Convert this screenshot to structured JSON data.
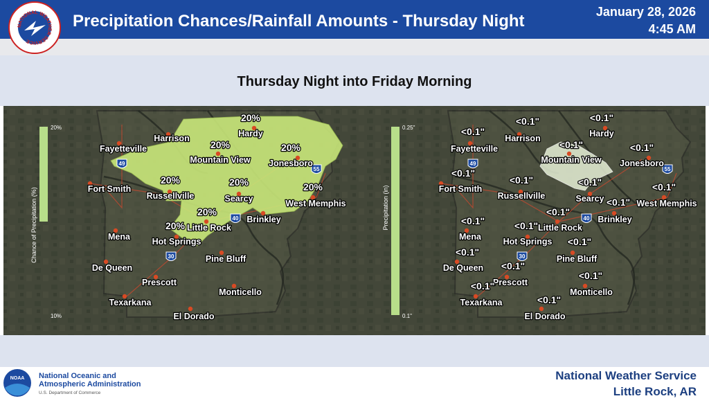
{
  "header": {
    "logo_text": "NATIONAL WEATHER SERVICE",
    "title": "Precipitation Chances/Rainfall Amounts - Thursday Night",
    "date": "January 28, 2026",
    "time": "4:45 AM"
  },
  "subtitle": "Thursday Night into Friday Morning",
  "maps": [
    {
      "legend_title": "Chance of Precipitation (%)",
      "legend_max": "20%",
      "legend_min": "10%",
      "interstates": [
        "49",
        "55",
        "40",
        "30"
      ],
      "cities": [
        {
          "name": "Fayetteville",
          "value": null
        },
        {
          "name": "Harrison",
          "value": null
        },
        {
          "name": "Hardy",
          "value": "20%"
        },
        {
          "name": "Mountain View",
          "value": "20%"
        },
        {
          "name": "Jonesboro",
          "value": "20%"
        },
        {
          "name": "Fort Smith",
          "value": null
        },
        {
          "name": "Russellville",
          "value": "20%"
        },
        {
          "name": "Searcy",
          "value": "20%"
        },
        {
          "name": "West Memphis",
          "value": "20%"
        },
        {
          "name": "Brinkley",
          "value": null
        },
        {
          "name": "Little Rock",
          "value": "20%"
        },
        {
          "name": "Mena",
          "value": null
        },
        {
          "name": "Hot Springs",
          "value": "20%"
        },
        {
          "name": "Pine Bluff",
          "value": null
        },
        {
          "name": "De Queen",
          "value": null
        },
        {
          "name": "Prescott",
          "value": null
        },
        {
          "name": "Monticello",
          "value": null
        },
        {
          "name": "Texarkana",
          "value": null
        },
        {
          "name": "El Dorado",
          "value": null
        }
      ]
    },
    {
      "legend_title": "Precipitation (in)",
      "legend_max": "0.25\"",
      "legend_min": "0.1\"",
      "interstates": [
        "49",
        "55",
        "40",
        "30"
      ],
      "cities": [
        {
          "name": "Fayetteville",
          "value": "<0.1\""
        },
        {
          "name": "Harrison",
          "value": "<0.1\""
        },
        {
          "name": "Hardy",
          "value": "<0.1\""
        },
        {
          "name": "Mountain View",
          "value": "<0.1\""
        },
        {
          "name": "Jonesboro",
          "value": "<0.1\""
        },
        {
          "name": "Fort Smith",
          "value": "<0.1\""
        },
        {
          "name": "Russellville",
          "value": "<0.1\""
        },
        {
          "name": "Searcy",
          "value": "<0.1\""
        },
        {
          "name": "West Memphis",
          "value": "<0.1\""
        },
        {
          "name": "Brinkley",
          "value": "<0.1\""
        },
        {
          "name": "Little Rock",
          "value": "<0.1\""
        },
        {
          "name": "Mena",
          "value": "<0.1\""
        },
        {
          "name": "Hot Springs",
          "value": "<0.1\""
        },
        {
          "name": "Pine Bluff",
          "value": "<0.1\""
        },
        {
          "name": "De Queen",
          "value": "<0.1\""
        },
        {
          "name": "Prescott",
          "value": "<0.1\""
        },
        {
          "name": "Monticello",
          "value": "<0.1\""
        },
        {
          "name": "Texarkana",
          "value": "<0.1\""
        },
        {
          "name": "El Dorado",
          "value": "<0.1\""
        }
      ]
    }
  ],
  "footer": {
    "noaa_logo": "NOAA",
    "agency_line1": "National Oceanic and",
    "agency_line2": "Atmospheric Administration",
    "department": "U.S. Department of Commerce",
    "office": "National Weather Service",
    "location": "Little Rock, AR"
  }
}
